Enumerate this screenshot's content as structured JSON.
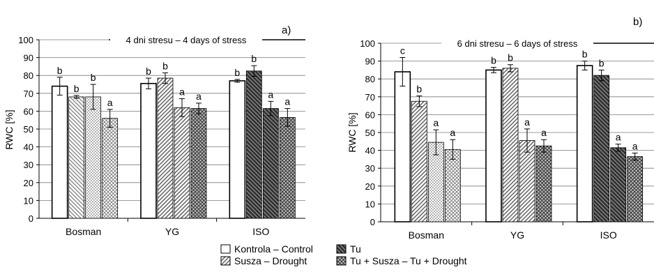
{
  "chart_data": [
    {
      "panel_label": "a)",
      "type": "bar",
      "title": "4 dni stresu – 4 days of stress",
      "ylabel": "RWC [%]",
      "xlabel": "",
      "ylim": [
        0,
        100
      ],
      "ytick_step": 10,
      "ytick_labels": [
        "0",
        "10",
        "20",
        "30",
        "40",
        "50",
        "60",
        "70",
        "80",
        "90",
        "100"
      ],
      "grid": true,
      "categories": [
        "Bosman",
        "YG",
        "ISO"
      ],
      "series": [
        {
          "name": "Kontrola – Control",
          "values": [
            {
              "Bosman": 74,
              "YG": 75.5,
              "ISO": 77
            }
          ],
          "data": [
            74,
            75.5,
            77
          ],
          "err": [
            5,
            3,
            0.8
          ],
          "letters": [
            "b",
            "b",
            "b"
          ]
        },
        {
          "name": "Tu",
          "data": [
            68,
            78.5,
            82.5
          ],
          "err": [
            0.8,
            3,
            3
          ],
          "letters": [
            "b",
            "b",
            "b"
          ]
        },
        {
          "name": "Susza – Drought",
          "data": [
            68,
            62,
            61.5
          ],
          "err": [
            7,
            5,
            4
          ],
          "letters": [
            "b",
            "a",
            "a"
          ]
        },
        {
          "name": "Tu + Susza – Tu + Drought",
          "data": [
            56,
            61.5,
            56.5
          ],
          "err": [
            5,
            3,
            5
          ],
          "letters": [
            "a",
            "a",
            "a"
          ]
        }
      ]
    },
    {
      "panel_label": "b)",
      "type": "bar",
      "title": "6 dni stresu – 6 days of stress",
      "ylabel": "RWC [%]",
      "xlabel": "",
      "ylim": [
        0,
        100
      ],
      "ytick_step": 10,
      "ytick_labels": [
        "0",
        "10",
        "20",
        "30",
        "40",
        "50",
        "60",
        "70",
        "80",
        "90",
        "100"
      ],
      "grid": true,
      "categories": [
        "Bosman",
        "YG",
        "ISO"
      ],
      "series": [
        {
          "name": "Kontrola – Control",
          "data": [
            84,
            85,
            87.5
          ],
          "err": [
            8,
            1.5,
            2.5
          ],
          "letters": [
            "c",
            "b",
            "b"
          ]
        },
        {
          "name": "Tu",
          "data": [
            67.5,
            86,
            82
          ],
          "err": [
            3,
            2,
            3
          ],
          "letters": [
            "b",
            "b",
            "b"
          ]
        },
        {
          "name": "Susza – Drought",
          "data": [
            44.5,
            45.5,
            41.5
          ],
          "err": [
            7,
            6.5,
            2
          ],
          "letters": [
            "a",
            "a",
            "a"
          ]
        },
        {
          "name": "Tu + Susza – Tu + Drought",
          "data": [
            40.5,
            42.5,
            36.5
          ],
          "err": [
            5.5,
            3.5,
            2
          ],
          "letters": [
            "a",
            "a",
            "a"
          ]
        }
      ]
    }
  ],
  "legend": {
    "items": [
      {
        "label": "Kontrola – Control",
        "pattern": "white"
      },
      {
        "label": "Susza – Drought",
        "pattern": "diag"
      },
      {
        "label": "Tu",
        "pattern": "darkdiag"
      },
      {
        "label": "Tu + Susza – Tu + Drought",
        "pattern": "cross"
      }
    ]
  }
}
